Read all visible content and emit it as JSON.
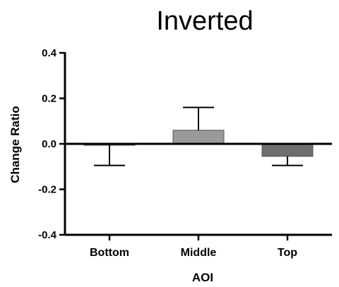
{
  "chart_data": {
    "type": "bar",
    "title": "Inverted",
    "xlabel": "AOI",
    "ylabel": "Change Ratio",
    "categories": [
      "Bottom",
      "Middle",
      "Top"
    ],
    "series": [
      {
        "values": [
          -0.005,
          0.06,
          -0.055
        ],
        "error_lower": [
          -0.095,
          null,
          -0.095
        ],
        "error_upper": [
          null,
          0.16,
          null
        ]
      }
    ],
    "ylim": [
      -0.4,
      0.4
    ],
    "yticks": [
      "0.4",
      "0.2",
      "0.0",
      "-0.2",
      "-0.4"
    ],
    "ytick_values": [
      0.4,
      0.2,
      0.0,
      -0.2,
      -0.4
    ],
    "bar_colors": [
      "#3a3a3a",
      "#9a9a9a",
      "#6e6e6e"
    ],
    "grid": false,
    "legend": "none"
  }
}
